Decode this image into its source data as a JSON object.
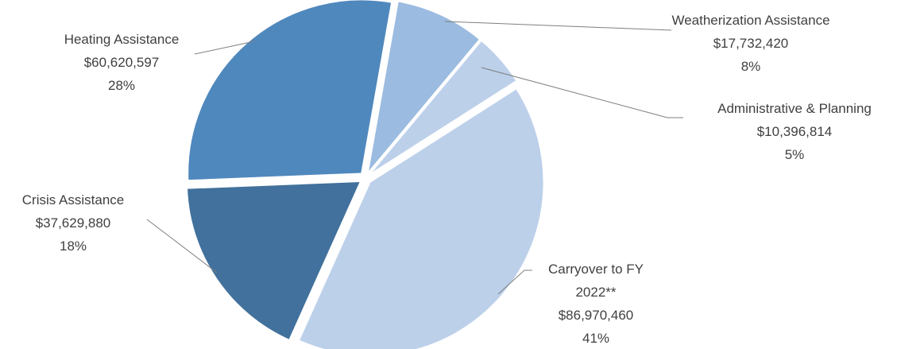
{
  "chart_data": {
    "type": "pie",
    "title": "",
    "slices": [
      {
        "label": "Weatherization Assistance",
        "amount": "$17,732,420",
        "percent": "8%",
        "value": 17732420,
        "color": "#9bbbe0"
      },
      {
        "label": "Administrative & Planning",
        "amount": "$10,396,814",
        "percent": "5%",
        "value": 10396814,
        "color": "#bcd0ea"
      },
      {
        "label_lines": [
          "Carryover to FY",
          "2022**"
        ],
        "amount": "$86,970,460",
        "percent": "41%",
        "value": 86970460,
        "color": "#bcd0ea"
      },
      {
        "label": "Crisis Assistance",
        "amount": "$37,629,880",
        "percent": "18%",
        "value": 37629880,
        "color": "#41719c"
      },
      {
        "label": "Heating Assistance",
        "amount": "$60,620,597",
        "percent": "28%",
        "value": 60620597,
        "color": "#4f88bd"
      }
    ],
    "legend": "none",
    "data_labels": "outside with leader lines"
  }
}
